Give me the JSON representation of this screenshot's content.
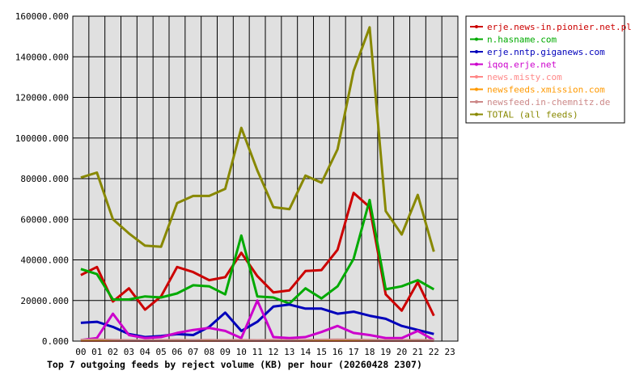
{
  "chart_data": {
    "type": "line",
    "title": "Top 7 outgoing feeds by reject volume (KB) per hour (20260428 2307)",
    "x_categories": [
      "00",
      "01",
      "02",
      "03",
      "04",
      "05",
      "06",
      "07",
      "08",
      "09",
      "10",
      "11",
      "12",
      "13",
      "14",
      "15",
      "16",
      "17",
      "18",
      "19",
      "20",
      "21",
      "22",
      "23"
    ],
    "ylim": [
      0,
      160000
    ],
    "y_ticks": [
      0,
      20000,
      40000,
      60000,
      80000,
      100000,
      120000,
      140000,
      160000
    ],
    "y_tick_labels": [
      "0.000",
      "20000.000",
      "40000.000",
      "60000.000",
      "80000.000",
      "100000.000",
      "120000.000",
      "140000.000",
      "160000.000"
    ],
    "grid": true,
    "legend_position": "top-right",
    "series": [
      {
        "name": "erje.news-in.pionier.net.pl",
        "color": "#cc0000",
        "values": [
          32500,
          36500,
          19500,
          26000,
          15500,
          22000,
          36500,
          34000,
          30000,
          31500,
          43500,
          32000,
          24000,
          25000,
          34500,
          35000,
          45000,
          73000,
          66000,
          23000,
          15000,
          29000,
          12500
        ]
      },
      {
        "name": "n.hasname.com",
        "color": "#00aa00",
        "values": [
          35500,
          33000,
          20500,
          20500,
          22000,
          21500,
          23500,
          27500,
          27000,
          23000,
          52000,
          22000,
          21500,
          18500,
          26000,
          21000,
          27000,
          40500,
          69500,
          25500,
          27000,
          30000,
          25500
        ]
      },
      {
        "name": "erje.nntp.giganews.com",
        "color": "#0000bb",
        "values": [
          9000,
          9500,
          7000,
          3500,
          2000,
          2500,
          3500,
          3000,
          7000,
          14000,
          5000,
          9500,
          17000,
          18000,
          16000,
          16000,
          13500,
          14500,
          12500,
          11000,
          7500,
          5500,
          3500
        ]
      },
      {
        "name": "iqoq.erje.net",
        "color": "#cc00cc",
        "values": [
          500,
          1500,
          13500,
          3000,
          1500,
          2000,
          4000,
          5500,
          6500,
          5000,
          1500,
          20000,
          2000,
          1500,
          2000,
          4500,
          7500,
          4000,
          3000,
          1500,
          1500,
          5000,
          500
        ]
      },
      {
        "name": "news.misty.com",
        "color": "#ff8888",
        "values": [
          0,
          0,
          0,
          0,
          0,
          0,
          0,
          0,
          0,
          0,
          0,
          0,
          0,
          0,
          0,
          0,
          0,
          0,
          0,
          0,
          0,
          0,
          0
        ]
      },
      {
        "name": "newsfeeds.xmission.com",
        "color": "#ff9900",
        "values": [
          300,
          300,
          300,
          300,
          300,
          300,
          300,
          300,
          300,
          300,
          300,
          300,
          300,
          300,
          300,
          300,
          300,
          300,
          300,
          300,
          300,
          300,
          300
        ]
      },
      {
        "name": "newsfeed.in-chemnitz.de",
        "color": "#cc8888",
        "values": [
          800,
          900,
          700,
          600,
          500,
          600,
          700,
          600,
          700,
          600,
          700,
          600,
          700,
          600,
          700,
          800,
          900,
          800,
          700,
          600,
          600,
          700,
          600
        ]
      },
      {
        "name": "TOTAL (all feeds)",
        "color": "#888800",
        "values": [
          80500,
          83000,
          60000,
          53000,
          47000,
          46500,
          68000,
          71500,
          71500,
          75000,
          105000,
          84000,
          66000,
          65000,
          81500,
          78000,
          94500,
          133000,
          154500,
          64000,
          52500,
          72000,
          44000
        ]
      }
    ]
  }
}
